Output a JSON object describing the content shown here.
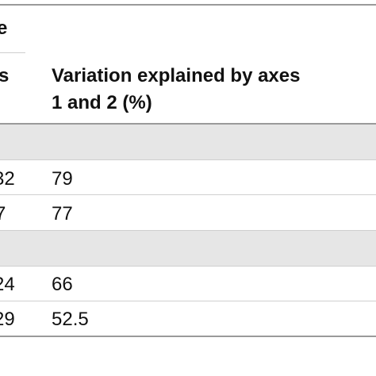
{
  "table": {
    "header_top_fragment": "e",
    "col1_header_fragment": "s",
    "col2_header_line1": "Variation explained by axes",
    "col2_header_line2": "1 and 2 (%)",
    "rows": [
      {
        "type": "section",
        "col1": "",
        "col2": ""
      },
      {
        "type": "data",
        "col1": "32",
        "col2": "79"
      },
      {
        "type": "data",
        "col1": "7",
        "col2": "77"
      },
      {
        "type": "section",
        "col1": "",
        "col2": ""
      },
      {
        "type": "data",
        "col1": "24",
        "col2": "66"
      },
      {
        "type": "data",
        "col1": "29",
        "col2": "52.5"
      }
    ]
  }
}
